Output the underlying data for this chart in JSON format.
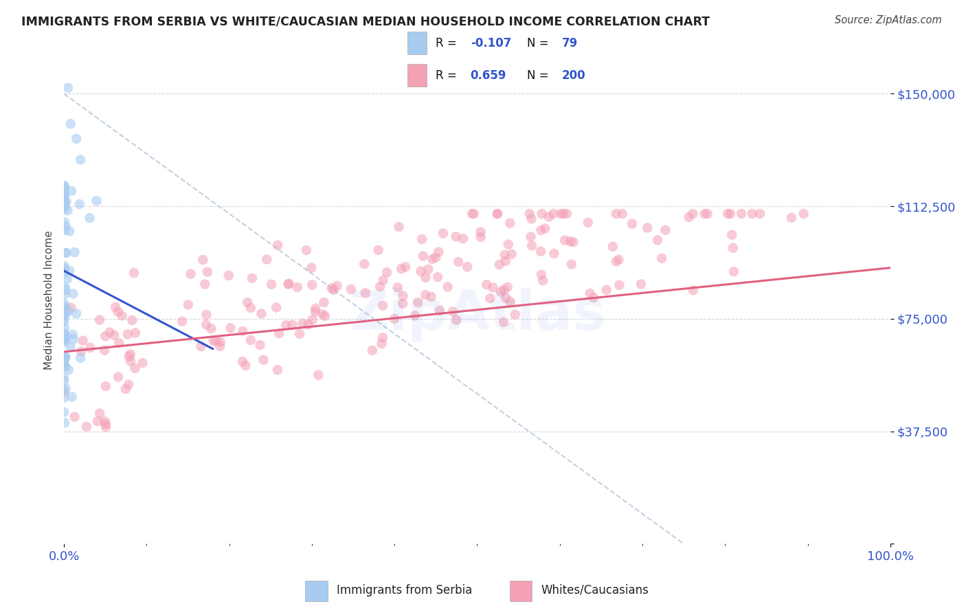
{
  "title": "IMMIGRANTS FROM SERBIA VS WHITE/CAUCASIAN MEDIAN HOUSEHOLD INCOME CORRELATION CHART",
  "source": "Source: ZipAtlas.com",
  "ylabel": "Median Household Income",
  "yticks": [
    0,
    37500,
    75000,
    112500,
    150000
  ],
  "ytick_labels": [
    "",
    "$37,500",
    "$75,000",
    "$112,500",
    "$150,000"
  ],
  "xlim": [
    0,
    1
  ],
  "ylim": [
    0,
    162500
  ],
  "xtick_labels": [
    "0.0%",
    "100.0%"
  ],
  "legend_r1": "-0.107",
  "legend_n1": "79",
  "legend_r2": "0.659",
  "legend_n2": "200",
  "legend_label1": "Immigrants from Serbia",
  "legend_label2": "Whites/Caucasians",
  "color_blue": "#A8CCF0",
  "color_pink": "#F4A0B5",
  "color_line_blue": "#3355CC",
  "color_line_pink": "#E06080",
  "color_trendline_gray": "#BBCCDD",
  "title_color": "#222222",
  "axis_label_color": "#444444",
  "ytick_color": "#3355CC",
  "xtick_color": "#3355CC",
  "background_color": "#FFFFFF",
  "watermark": "ZipAtlas",
  "n_blue": 79,
  "n_pink": 200,
  "r_blue": -0.107,
  "r_pink": 0.659,
  "blue_line_x0": 0.0,
  "blue_line_y0": 91000,
  "blue_line_x1": 0.18,
  "blue_line_y1": 65000,
  "pink_line_x0": 0.0,
  "pink_line_y0": 64000,
  "pink_line_x1": 1.0,
  "pink_line_y1": 92000,
  "gray_line_x0": 0.0,
  "gray_line_y0": 150000,
  "gray_line_x1": 0.75,
  "gray_line_y1": 0
}
